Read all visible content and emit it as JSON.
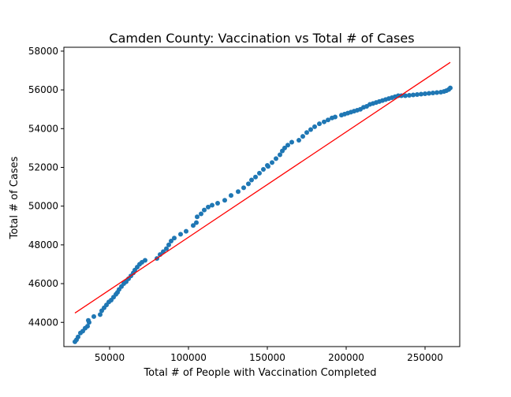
{
  "chart_data": {
    "type": "scatter",
    "title": "Camden County: Vaccination vs Total # of Cases",
    "xlabel": "Total # of People with Vaccination Completed",
    "ylabel": "Total # of Cases",
    "xlim": [
      21000,
      272000
    ],
    "ylim": [
      42750,
      58200
    ],
    "xticks": [
      50000,
      100000,
      150000,
      200000,
      250000
    ],
    "yticks": [
      44000,
      46000,
      48000,
      50000,
      52000,
      54000,
      56000,
      58000
    ],
    "colors": {
      "points": "#1f77b4",
      "trendline": "#ff0000",
      "axes": "#000000"
    },
    "series": [
      {
        "kind": "scatter",
        "x": [
          28000,
          29000,
          30000,
          31500,
          33000,
          34500,
          36000,
          37000,
          36500,
          40000,
          44000,
          45000,
          46500,
          48000,
          49500,
          51000,
          52500,
          54000,
          55000,
          56000,
          57500,
          59000,
          60500,
          62000,
          63500,
          65000,
          66000,
          67500,
          69000,
          70500,
          72500,
          80000,
          82000,
          84000,
          86000,
          87500,
          89000,
          91000,
          95000,
          98500,
          103000,
          105000,
          105500,
          108000,
          110000,
          112500,
          115000,
          118500,
          123000,
          127000,
          131500,
          135000,
          138000,
          140000,
          142500,
          145000,
          147500,
          150000,
          150500,
          153000,
          155500,
          158000,
          159500,
          161000,
          163000,
          165500,
          170000,
          172500,
          175000,
          177500,
          180000,
          183000,
          186000,
          188500,
          191000,
          193000,
          197000,
          199000,
          201000,
          203000,
          205000,
          207000,
          209000,
          211000,
          213000,
          215000,
          217000,
          219000,
          221000,
          223000,
          225000,
          227000,
          229000,
          231000,
          233000,
          235000,
          237500,
          240000,
          242500,
          245000,
          247500,
          250000,
          252500,
          255000,
          257500,
          260000,
          262000,
          263500,
          265000,
          266000
        ],
        "y": [
          43000,
          43100,
          43250,
          43450,
          43550,
          43700,
          43800,
          44000,
          44100,
          44300,
          44400,
          44600,
          44750,
          44900,
          45050,
          45150,
          45300,
          45450,
          45550,
          45700,
          45850,
          46000,
          46100,
          46250,
          46400,
          46550,
          46700,
          46850,
          47000,
          47100,
          47200,
          47300,
          47500,
          47650,
          47800,
          48000,
          48200,
          48350,
          48550,
          48700,
          49000,
          49150,
          49450,
          49600,
          49800,
          49950,
          50050,
          50150,
          50300,
          50550,
          50750,
          50950,
          51150,
          51350,
          51500,
          51700,
          51900,
          52100,
          52050,
          52250,
          52450,
          52650,
          52850,
          53000,
          53150,
          53300,
          53400,
          53600,
          53800,
          53950,
          54100,
          54250,
          54350,
          54450,
          54550,
          54600,
          54700,
          54750,
          54800,
          54850,
          54900,
          54950,
          55000,
          55100,
          55150,
          55250,
          55300,
          55350,
          55400,
          55450,
          55500,
          55550,
          55600,
          55650,
          55700,
          55700,
          55700,
          55720,
          55740,
          55760,
          55780,
          55800,
          55820,
          55840,
          55860,
          55880,
          55920,
          55960,
          56020,
          56100
        ]
      },
      {
        "kind": "line",
        "x": [
          28000,
          266000
        ],
        "y": [
          44480,
          57420
        ]
      }
    ]
  }
}
